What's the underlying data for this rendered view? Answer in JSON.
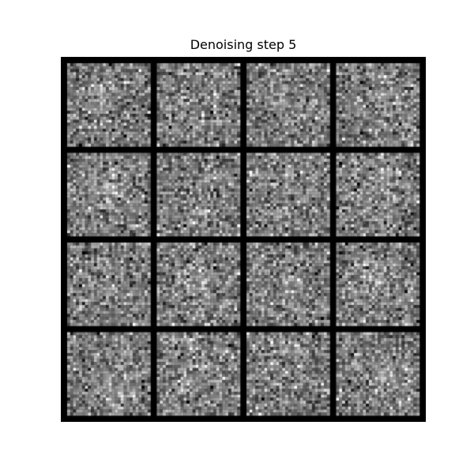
{
  "title": "Denoising step 5",
  "grid": {
    "rows": 4,
    "cols": 4,
    "tile_resolution": 28,
    "border_color": "#000000",
    "content": "grayscale noise samples"
  }
}
